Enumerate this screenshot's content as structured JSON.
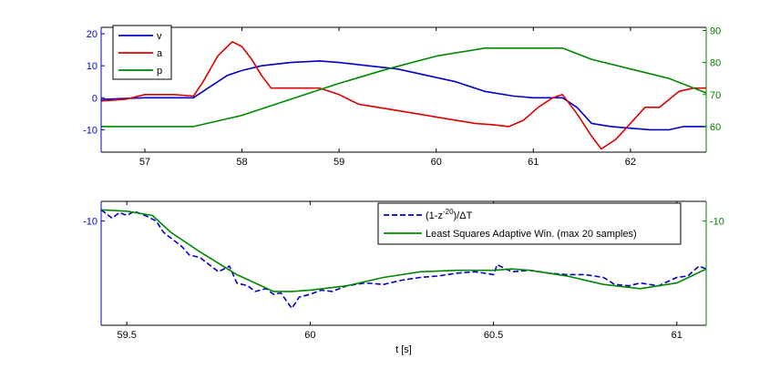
{
  "chart_data": [
    {
      "type": "line",
      "title": "",
      "xlabel": "",
      "xlim": [
        56.55,
        62.78
      ],
      "x_ticks": [
        57,
        58,
        59,
        60,
        61,
        62
      ],
      "x_tick_labels": [
        "57",
        "58",
        "59",
        "60",
        "61",
        "62"
      ],
      "left_axis": {
        "ylim": [
          -17,
          22
        ],
        "ticks": [
          -10,
          0,
          10,
          20
        ],
        "tick_labels": [
          "-10",
          "0",
          "10",
          "20"
        ],
        "color": "#0000cc"
      },
      "right_axis": {
        "ylim": [
          52,
          91
        ],
        "ticks": [
          60,
          70,
          80,
          90
        ],
        "tick_labels": [
          "60",
          "70",
          "80",
          "90"
        ],
        "color": "#007f00"
      },
      "legend": {
        "placement": "top-left",
        "entries": [
          "v",
          "a",
          "p"
        ]
      },
      "series": [
        {
          "name": "v",
          "axis": "left",
          "color": "#0000cc",
          "x": [
            56.55,
            57.0,
            57.5,
            57.7,
            57.85,
            58.0,
            58.2,
            58.5,
            58.8,
            59.0,
            59.3,
            59.6,
            59.9,
            60.2,
            60.5,
            60.8,
            61.0,
            61.3,
            61.45,
            61.6,
            61.8,
            62.0,
            62.2,
            62.4,
            62.55,
            62.78
          ],
          "y": [
            -0.5,
            0,
            0,
            4,
            7,
            8.5,
            10,
            11,
            11.5,
            11,
            10,
            9,
            7,
            5,
            2,
            0.5,
            0,
            0,
            -3,
            -8,
            -9,
            -9.5,
            -10,
            -10,
            -9,
            -9
          ]
        },
        {
          "name": "a",
          "axis": "left",
          "color": "#dd0000",
          "x": [
            56.55,
            56.8,
            57.0,
            57.3,
            57.5,
            57.6,
            57.75,
            57.9,
            58.0,
            58.1,
            58.2,
            58.3,
            58.4,
            58.6,
            58.8,
            59.0,
            59.2,
            59.4,
            59.6,
            59.8,
            60.0,
            60.2,
            60.4,
            60.6,
            60.75,
            60.9,
            61.05,
            61.2,
            61.3,
            61.45,
            61.6,
            61.7,
            61.85,
            62.0,
            62.15,
            62.3,
            62.5,
            62.65,
            62.78
          ],
          "y": [
            -1,
            -0.5,
            1,
            1,
            0.5,
            5,
            13,
            17.5,
            16,
            12,
            7,
            3,
            3,
            3,
            3,
            1,
            -2,
            -3,
            -4,
            -5,
            -6,
            -7,
            -8,
            -8.5,
            -9,
            -7,
            -3,
            0,
            1,
            -5,
            -12,
            -16,
            -13,
            -8,
            -3,
            -3,
            2,
            3,
            3
          ]
        },
        {
          "name": "p",
          "axis": "right",
          "color": "#008800",
          "x": [
            56.55,
            57.5,
            58.0,
            58.5,
            59.0,
            59.5,
            60.0,
            60.5,
            61.0,
            61.3,
            61.6,
            62.0,
            62.4,
            62.78
          ],
          "y": [
            60,
            60,
            63.5,
            68.5,
            73.5,
            78,
            82,
            84.5,
            84.5,
            84.5,
            81,
            78,
            75,
            70.5
          ]
        }
      ]
    },
    {
      "type": "line",
      "title": "",
      "xlabel": "t [s]",
      "xlim": [
        59.43,
        61.08
      ],
      "x_ticks": [
        59.5,
        60,
        60.5,
        61
      ],
      "x_tick_labels": [
        "59.5",
        "60",
        "60.5",
        "61"
      ],
      "left_axis": {
        "ylim": [
          -13.7,
          -9.3
        ],
        "ticks": [
          -10
        ],
        "tick_labels": [
          "-10"
        ],
        "color": "#0000cc"
      },
      "right_axis": {
        "ylim": [
          -13.7,
          -9.3
        ],
        "ticks": [
          -10
        ],
        "tick_labels": [
          "-10"
        ],
        "color": "#007f00"
      },
      "legend": {
        "placement": "top-right",
        "entries": [
          "(1-z^-20)/ΔT",
          "Least Squares Adaptive Win. (max 20 samples)"
        ]
      },
      "series": [
        {
          "name": "(1-z^-20)/ΔT",
          "style": "dashed",
          "color": "#0000cc",
          "x": [
            59.43,
            59.46,
            59.48,
            59.5,
            59.52,
            59.55,
            59.58,
            59.6,
            59.62,
            59.65,
            59.67,
            59.7,
            59.72,
            59.75,
            59.78,
            59.8,
            59.83,
            59.85,
            59.88,
            59.9,
            59.92,
            59.95,
            59.97,
            60.0,
            60.03,
            60.06,
            60.1,
            60.15,
            60.2,
            60.25,
            60.3,
            60.35,
            60.4,
            60.45,
            60.5,
            60.51,
            60.55,
            60.6,
            60.65,
            60.7,
            60.75,
            60.8,
            60.83,
            60.87,
            60.9,
            60.95,
            61.0,
            61.03,
            61.06,
            61.08
          ],
          "y": [
            -9.6,
            -9.9,
            -9.7,
            -9.8,
            -9.65,
            -9.8,
            -10.0,
            -10.4,
            -10.6,
            -10.9,
            -11.2,
            -11.3,
            -11.5,
            -11.8,
            -11.6,
            -12.2,
            -12.3,
            -12.5,
            -12.4,
            -12.6,
            -12.55,
            -13.1,
            -12.7,
            -12.6,
            -12.45,
            -12.5,
            -12.3,
            -12.2,
            -12.25,
            -12.1,
            -12.0,
            -11.95,
            -11.85,
            -11.8,
            -11.9,
            -11.55,
            -11.8,
            -11.75,
            -11.85,
            -11.9,
            -11.9,
            -12.0,
            -12.25,
            -12.3,
            -12.2,
            -12.3,
            -12.0,
            -11.95,
            -11.6,
            -11.7
          ]
        },
        {
          "name": "Least Squares Adaptive Win. (max 20 samples)",
          "style": "solid",
          "color": "#008800",
          "x": [
            59.43,
            59.5,
            59.57,
            59.62,
            59.7,
            59.8,
            59.9,
            59.95,
            60.0,
            60.1,
            60.2,
            60.3,
            60.4,
            60.5,
            60.55,
            60.6,
            60.7,
            60.8,
            60.9,
            61.0,
            61.08
          ],
          "y": [
            -9.6,
            -9.65,
            -9.8,
            -10.4,
            -11.1,
            -11.9,
            -12.5,
            -12.5,
            -12.45,
            -12.3,
            -12.0,
            -11.8,
            -11.75,
            -11.75,
            -11.7,
            -11.75,
            -11.95,
            -12.25,
            -12.4,
            -12.2,
            -11.7
          ]
        }
      ]
    }
  ]
}
